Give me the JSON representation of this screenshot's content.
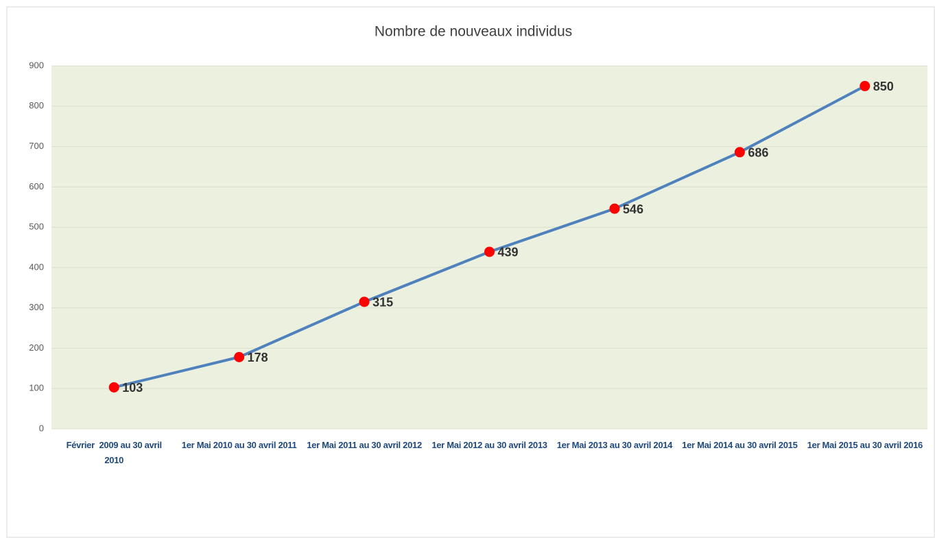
{
  "chart_data": {
    "type": "line",
    "title": "Nombre de nouveaux individus",
    "categories": [
      "Février  2009 au 30 avril 2010",
      "1er Mai 2010 au 30 avril 2011",
      "1er Mai 2011 au 30 avril 2012",
      "1er Mai 2012 au 30 avril 2013",
      "1er Mai 2013 au 30 avril 2014",
      "1er Mai 2014 au 30 avril 2015",
      "1er Mai 2015 au 30 avril 2016"
    ],
    "values": [
      103,
      178,
      315,
      439,
      546,
      686,
      850
    ],
    "color": "#4f81bd",
    "marker_color": "#ff0000",
    "ylim": [
      0,
      900
    ],
    "yticks": [
      0,
      100,
      200,
      300,
      400,
      500,
      600,
      700,
      800,
      900
    ],
    "grid": true
  }
}
